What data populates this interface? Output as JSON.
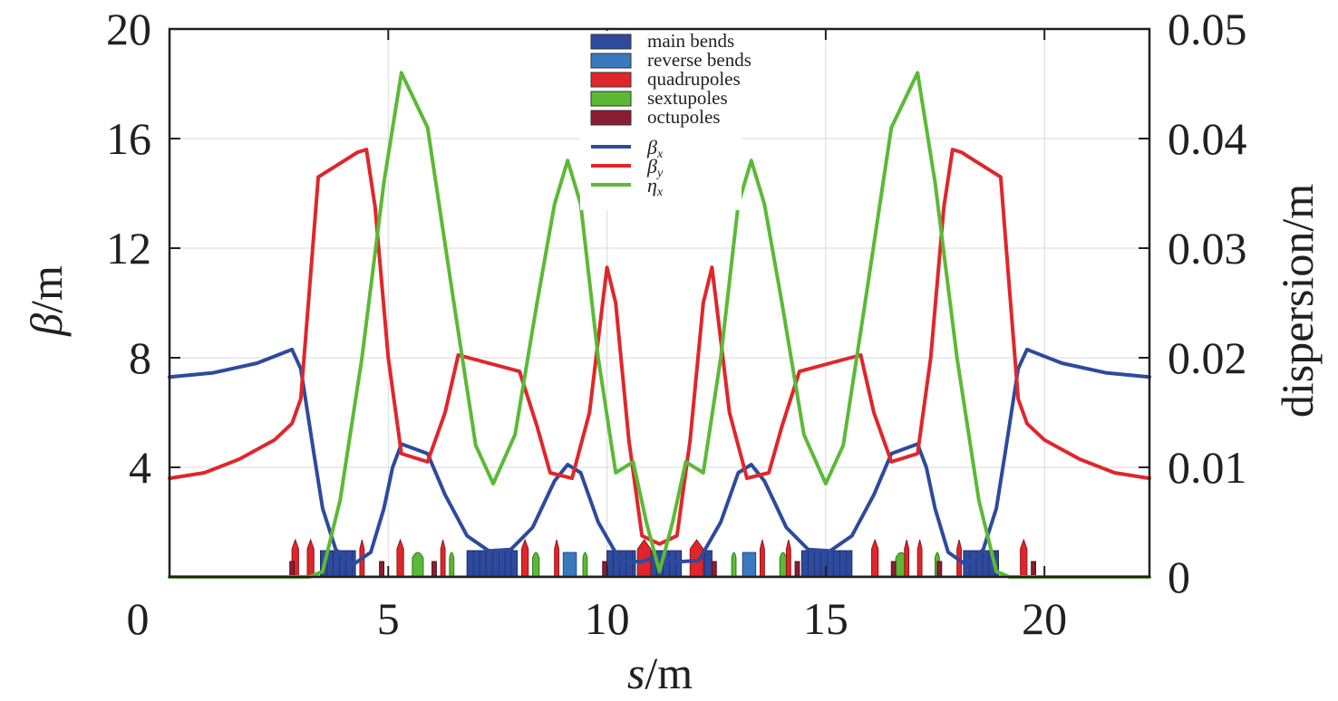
{
  "chart_data": {
    "type": "line",
    "xlabel": {
      "italic": "s",
      "rest": "/m"
    },
    "ylabel": {
      "italic": "β",
      "rest": "/m"
    },
    "y2label": "dispersion/m",
    "xlim": [
      0,
      22.4
    ],
    "ylim": [
      0,
      20
    ],
    "y2lim": [
      0,
      0.05
    ],
    "x_ticks": [
      0,
      5,
      10,
      15,
      20
    ],
    "y_ticks": [
      4,
      8,
      12,
      16,
      20
    ],
    "y2_ticks": [
      "0",
      "0.01",
      "0.02",
      "0.03",
      "0.04",
      "0.05"
    ],
    "grid": true,
    "legend_position": "top-center",
    "legend": [
      {
        "label": "main bends",
        "kind": "box",
        "color": "#2e4a9e"
      },
      {
        "label": "reverse bends",
        "kind": "box",
        "color": "#3a79c0"
      },
      {
        "label": "quadrupoles",
        "kind": "box",
        "color": "#e0262b"
      },
      {
        "label": "sextupoles",
        "kind": "box",
        "color": "#5cb936"
      },
      {
        "label": "octupoles",
        "kind": "box",
        "color": "#8b1d33"
      },
      {
        "label": "β",
        "sub": "x",
        "kind": "line",
        "color": "#2e4a9e"
      },
      {
        "label": "β",
        "sub": "y",
        "kind": "line",
        "color": "#e0262b"
      },
      {
        "label": "η",
        "sub": "x",
        "kind": "line",
        "color": "#5cb936"
      }
    ],
    "series": [
      {
        "name": "β_x",
        "axis": "left",
        "color": "#2e4a9e",
        "points": [
          [
            0,
            7.3
          ],
          [
            1,
            7.45
          ],
          [
            2,
            7.8
          ],
          [
            2.8,
            8.3
          ],
          [
            3.0,
            7.6
          ],
          [
            3.3,
            4.5
          ],
          [
            3.5,
            2.5
          ],
          [
            3.8,
            1.0
          ],
          [
            4.2,
            0.45
          ],
          [
            4.6,
            0.9
          ],
          [
            4.9,
            2.5
          ],
          [
            5.1,
            4.0
          ],
          [
            5.3,
            4.85
          ],
          [
            5.9,
            4.5
          ],
          [
            6.3,
            3.0
          ],
          [
            6.8,
            1.5
          ],
          [
            7.3,
            0.95
          ],
          [
            7.8,
            1.0
          ],
          [
            8.3,
            1.8
          ],
          [
            8.8,
            3.5
          ],
          [
            9.1,
            4.1
          ],
          [
            9.4,
            3.8
          ],
          [
            9.8,
            2.0
          ],
          [
            10.3,
            0.6
          ],
          [
            10.8,
            0.55
          ],
          [
            11.2,
            0.8
          ],
          [
            11.6,
            0.55
          ],
          [
            12.1,
            0.6
          ],
          [
            12.6,
            2.0
          ],
          [
            13.0,
            3.8
          ],
          [
            13.3,
            4.1
          ],
          [
            13.6,
            3.5
          ],
          [
            14.1,
            1.8
          ],
          [
            14.6,
            1.0
          ],
          [
            15.1,
            0.95
          ],
          [
            15.6,
            1.5
          ],
          [
            16.1,
            3.0
          ],
          [
            16.5,
            4.5
          ],
          [
            17.1,
            4.85
          ],
          [
            17.3,
            4.0
          ],
          [
            17.5,
            2.5
          ],
          [
            17.8,
            0.9
          ],
          [
            18.2,
            0.45
          ],
          [
            18.6,
            1.0
          ],
          [
            18.9,
            2.5
          ],
          [
            19.1,
            4.5
          ],
          [
            19.4,
            7.6
          ],
          [
            19.6,
            8.3
          ],
          [
            20.4,
            7.8
          ],
          [
            21.4,
            7.45
          ],
          [
            22.4,
            7.3
          ]
        ]
      },
      {
        "name": "β_y",
        "axis": "left",
        "color": "#e0262b",
        "points": [
          [
            0,
            3.6
          ],
          [
            0.8,
            3.8
          ],
          [
            1.6,
            4.3
          ],
          [
            2.4,
            5.0
          ],
          [
            2.8,
            5.6
          ],
          [
            3.0,
            6.5
          ],
          [
            3.2,
            10.5
          ],
          [
            3.4,
            14.6
          ],
          [
            3.8,
            15.0
          ],
          [
            4.3,
            15.5
          ],
          [
            4.5,
            15.6
          ],
          [
            4.7,
            13.5
          ],
          [
            5.0,
            8.0
          ],
          [
            5.3,
            4.5
          ],
          [
            5.9,
            4.2
          ],
          [
            6.3,
            6.0
          ],
          [
            6.6,
            8.1
          ],
          [
            7.3,
            7.8
          ],
          [
            8.0,
            7.5
          ],
          [
            8.4,
            5.5
          ],
          [
            8.7,
            3.8
          ],
          [
            9.2,
            3.6
          ],
          [
            9.6,
            6.0
          ],
          [
            9.9,
            10.0
          ],
          [
            10.0,
            11.3
          ],
          [
            10.2,
            10.0
          ],
          [
            10.5,
            5.0
          ],
          [
            10.8,
            1.5
          ],
          [
            11.2,
            1.2
          ],
          [
            11.6,
            1.5
          ],
          [
            11.9,
            5.0
          ],
          [
            12.2,
            10.0
          ],
          [
            12.4,
            11.3
          ],
          [
            12.5,
            10.0
          ],
          [
            12.8,
            6.0
          ],
          [
            13.2,
            3.6
          ],
          [
            13.7,
            3.8
          ],
          [
            14.0,
            5.5
          ],
          [
            14.4,
            7.5
          ],
          [
            15.1,
            7.8
          ],
          [
            15.8,
            8.1
          ],
          [
            16.1,
            6.0
          ],
          [
            16.5,
            4.2
          ],
          [
            17.1,
            4.5
          ],
          [
            17.4,
            8.0
          ],
          [
            17.7,
            13.5
          ],
          [
            17.9,
            15.6
          ],
          [
            18.1,
            15.5
          ],
          [
            18.6,
            15.0
          ],
          [
            19.0,
            14.6
          ],
          [
            19.2,
            10.5
          ],
          [
            19.4,
            6.5
          ],
          [
            19.6,
            5.6
          ],
          [
            20.0,
            5.0
          ],
          [
            20.8,
            4.3
          ],
          [
            21.6,
            3.8
          ],
          [
            22.4,
            3.6
          ]
        ]
      },
      {
        "name": "η_x",
        "axis": "right",
        "color": "#5cb936",
        "points": [
          [
            0,
            0
          ],
          [
            3.2,
            0
          ],
          [
            3.5,
            0.0005
          ],
          [
            3.9,
            0.007
          ],
          [
            4.4,
            0.02
          ],
          [
            4.9,
            0.036
          ],
          [
            5.3,
            0.046
          ],
          [
            5.9,
            0.041
          ],
          [
            6.5,
            0.025
          ],
          [
            7.0,
            0.012
          ],
          [
            7.4,
            0.0085
          ],
          [
            7.9,
            0.013
          ],
          [
            8.4,
            0.025
          ],
          [
            8.8,
            0.034
          ],
          [
            9.1,
            0.038
          ],
          [
            9.4,
            0.034
          ],
          [
            9.8,
            0.02
          ],
          [
            10.2,
            0.0095
          ],
          [
            10.6,
            0.0105
          ],
          [
            10.9,
            0.005
          ],
          [
            11.2,
            0.0005
          ],
          [
            11.5,
            0.005
          ],
          [
            11.8,
            0.0105
          ],
          [
            12.2,
            0.0095
          ],
          [
            12.6,
            0.02
          ],
          [
            13.0,
            0.034
          ],
          [
            13.3,
            0.038
          ],
          [
            13.6,
            0.034
          ],
          [
            14.0,
            0.025
          ],
          [
            14.5,
            0.013
          ],
          [
            15.0,
            0.0085
          ],
          [
            15.4,
            0.012
          ],
          [
            15.9,
            0.025
          ],
          [
            16.5,
            0.041
          ],
          [
            17.1,
            0.046
          ],
          [
            17.5,
            0.036
          ],
          [
            18.0,
            0.02
          ],
          [
            18.5,
            0.007
          ],
          [
            18.9,
            0.0005
          ],
          [
            19.2,
            0
          ],
          [
            22.4,
            0
          ]
        ]
      }
    ],
    "lattice_elements": {
      "main_bends": [
        [
          3.45,
          4.25
        ],
        [
          6.8,
          7.95
        ],
        [
          10.0,
          10.65
        ],
        [
          10.7,
          11.7
        ],
        [
          11.95,
          12.4
        ],
        [
          14.45,
          15.6
        ],
        [
          18.15,
          18.95
        ]
      ],
      "reverse_bends": [
        [
          9.0,
          9.3
        ],
        [
          13.1,
          13.4
        ]
      ],
      "quadrupoles": [
        [
          2.8,
          2.95
        ],
        [
          3.15,
          3.3
        ],
        [
          4.35,
          4.45
        ],
        [
          5.2,
          5.35
        ],
        [
          6.2,
          6.3
        ],
        [
          8.05,
          8.2
        ],
        [
          8.8,
          8.9
        ],
        [
          10.7,
          11.0
        ],
        [
          11.9,
          12.2
        ],
        [
          13.5,
          13.6
        ],
        [
          14.1,
          14.2
        ],
        [
          16.05,
          16.2
        ],
        [
          16.8,
          16.9
        ],
        [
          17.1,
          17.2
        ],
        [
          18.0,
          18.1
        ],
        [
          19.45,
          19.6
        ]
      ],
      "sextupoles": [
        [
          5.55,
          5.8
        ],
        [
          6.4,
          6.5
        ],
        [
          8.3,
          8.45
        ],
        [
          9.45,
          9.55
        ],
        [
          12.85,
          12.95
        ],
        [
          13.95,
          14.1
        ],
        [
          16.6,
          16.85
        ],
        [
          17.5,
          17.6
        ]
      ],
      "octupoles": [
        [
          2.75,
          2.85
        ],
        [
          4.8,
          4.9
        ],
        [
          6.0,
          6.1
        ],
        [
          9.9,
          10.0
        ],
        [
          12.4,
          12.5
        ],
        [
          14.3,
          14.4
        ],
        [
          16.5,
          16.6
        ],
        [
          17.55,
          17.65
        ],
        [
          19.7,
          19.8
        ]
      ]
    }
  }
}
